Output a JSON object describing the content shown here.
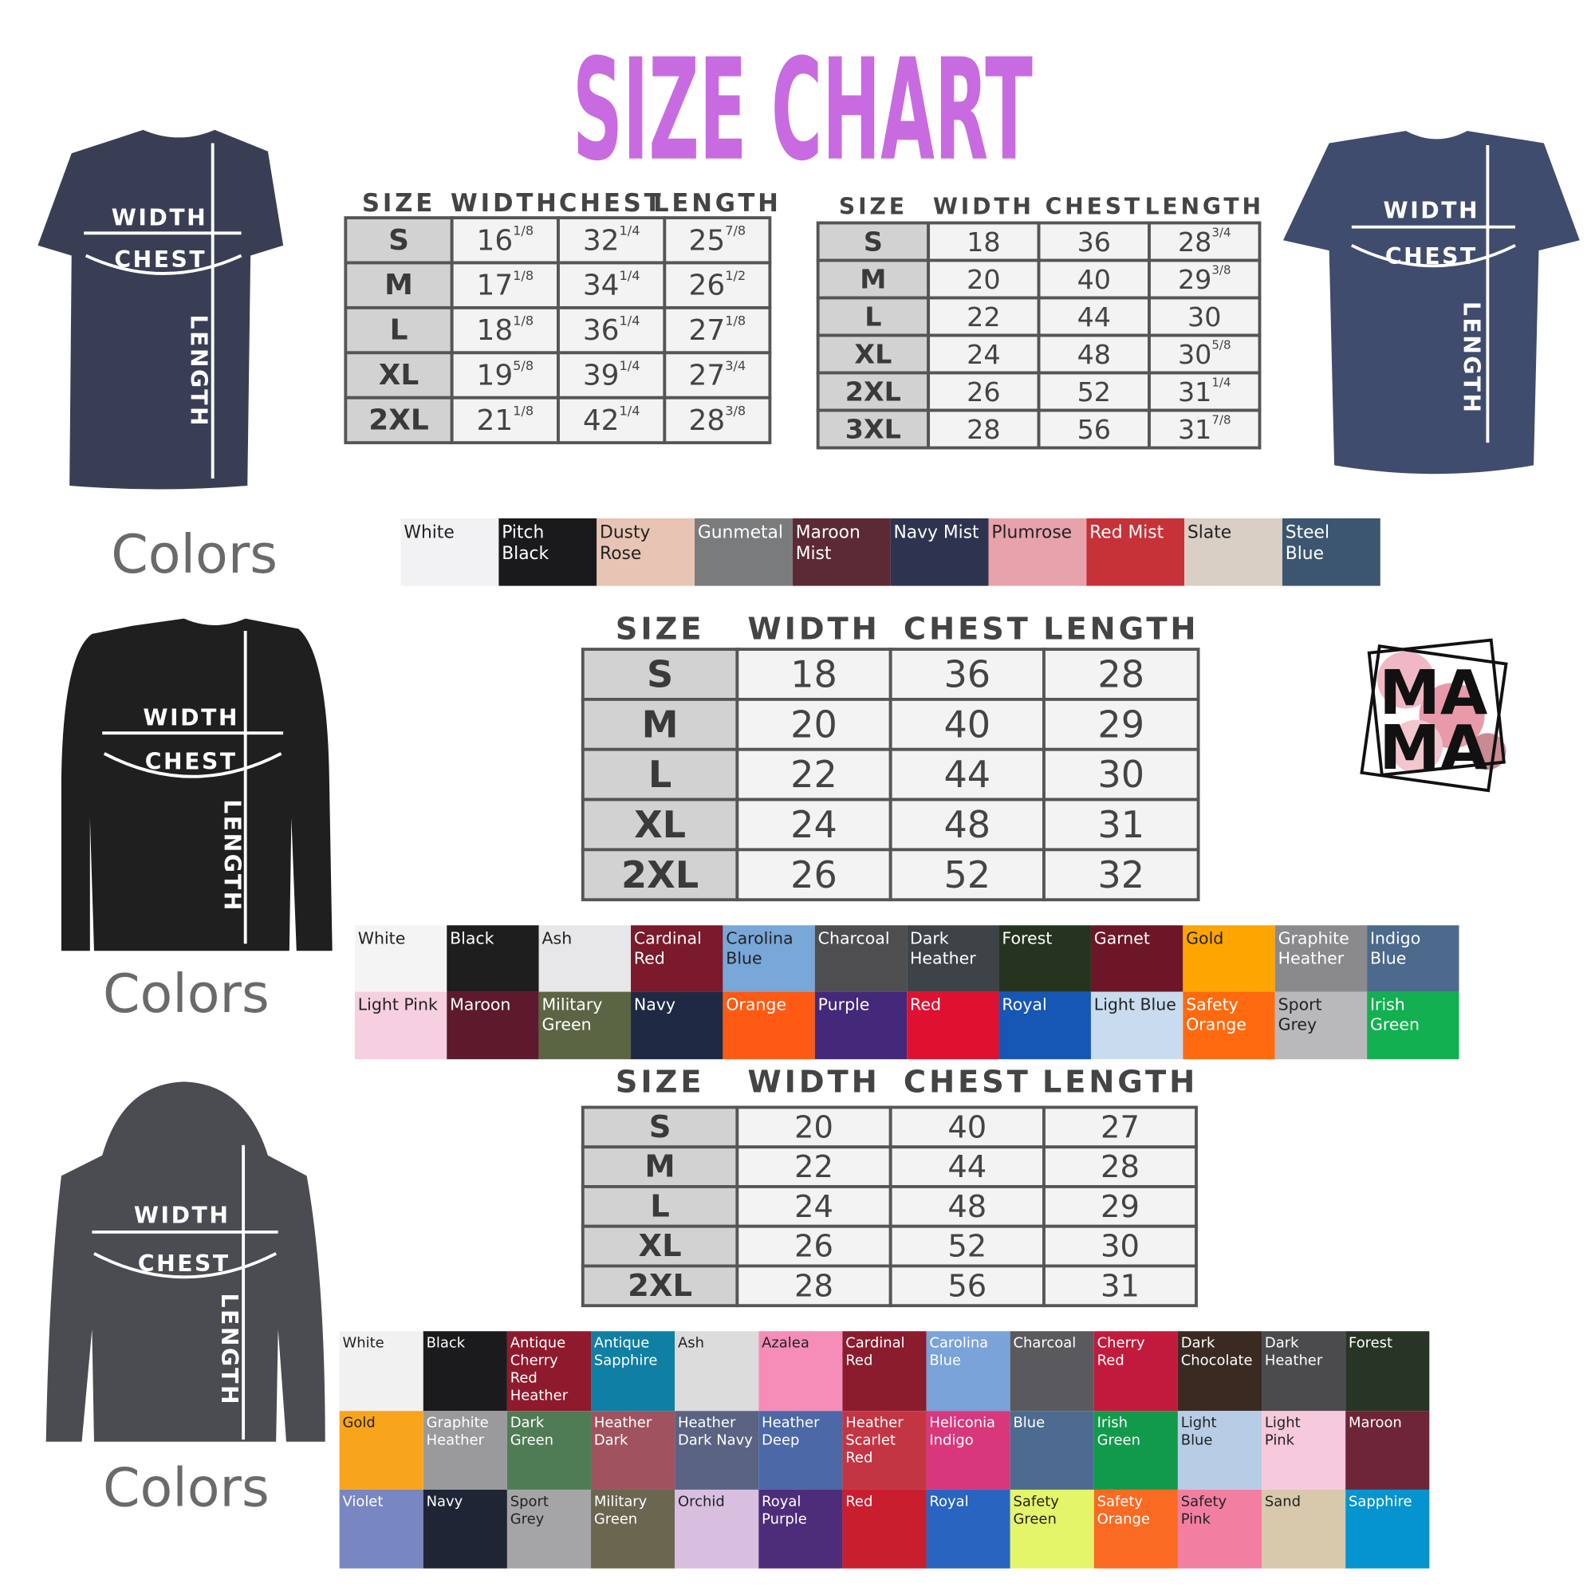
{
  "title": "SIZE CHART",
  "garments": [
    {
      "width": "WIDTH",
      "chest": "CHEST",
      "length": "LENGTH"
    },
    {
      "width": "WIDTH",
      "chest": "CHEST",
      "length": "LENGTH"
    },
    {
      "width": "WIDTH",
      "chest": "CHEST",
      "length": "LENGTH"
    },
    {
      "width": "WIDTH",
      "chest": "CHEST",
      "length": "LENGTH"
    }
  ],
  "colors_labels": [
    "Colors",
    "Colors",
    "Colors"
  ],
  "logo": [
    "MA",
    "MA"
  ],
  "tables": [
    {
      "header": [
        "SIZE",
        "WIDTH",
        "CHEST",
        "LENGTH"
      ],
      "rows": [
        [
          "S",
          [
            "16",
            "1/8"
          ],
          [
            "32",
            "1/4"
          ],
          [
            "25",
            "7/8"
          ]
        ],
        [
          "M",
          [
            "17",
            "1/8"
          ],
          [
            "34",
            "1/4"
          ],
          [
            "26",
            "1/2"
          ]
        ],
        [
          "L",
          [
            "18",
            "1/8"
          ],
          [
            "36",
            "1/4"
          ],
          [
            "27",
            "1/8"
          ]
        ],
        [
          "XL",
          [
            "19",
            "5/8"
          ],
          [
            "39",
            "1/4"
          ],
          [
            "27",
            "3/4"
          ]
        ],
        [
          "2XL",
          [
            "21",
            "1/8"
          ],
          [
            "42",
            "1/4"
          ],
          [
            "28",
            "3/8"
          ]
        ]
      ]
    },
    {
      "header": [
        "SIZE",
        "WIDTH",
        "CHEST",
        "LENGTH"
      ],
      "rows": [
        [
          "S",
          [
            "18"
          ],
          [
            "36"
          ],
          [
            "28",
            "3/4"
          ]
        ],
        [
          "M",
          [
            "20"
          ],
          [
            "40"
          ],
          [
            "29",
            "3/8"
          ]
        ],
        [
          "L",
          [
            "22"
          ],
          [
            "44"
          ],
          [
            "30"
          ]
        ],
        [
          "XL",
          [
            "24"
          ],
          [
            "48"
          ],
          [
            "30",
            "5/8"
          ]
        ],
        [
          "2XL",
          [
            "26"
          ],
          [
            "52"
          ],
          [
            "31",
            "1/4"
          ]
        ],
        [
          "3XL",
          [
            "28"
          ],
          [
            "56"
          ],
          [
            "31",
            "7/8"
          ]
        ]
      ]
    },
    {
      "header": [
        "SIZE",
        "WIDTH",
        "CHEST",
        "LENGTH"
      ],
      "rows": [
        [
          "S",
          [
            "18"
          ],
          [
            "36"
          ],
          [
            "28"
          ]
        ],
        [
          "M",
          [
            "20"
          ],
          [
            "40"
          ],
          [
            "29"
          ]
        ],
        [
          "L",
          [
            "22"
          ],
          [
            "44"
          ],
          [
            "30"
          ]
        ],
        [
          "XL",
          [
            "24"
          ],
          [
            "48"
          ],
          [
            "31"
          ]
        ],
        [
          "2XL",
          [
            "26"
          ],
          [
            "52"
          ],
          [
            "32"
          ]
        ]
      ]
    },
    {
      "header": [
        "SIZE",
        "WIDTH",
        "CHEST",
        "LENGTH"
      ],
      "rows": [
        [
          "S",
          [
            "20"
          ],
          [
            "40"
          ],
          [
            "27"
          ]
        ],
        [
          "M",
          [
            "22"
          ],
          [
            "44"
          ],
          [
            "28"
          ]
        ],
        [
          "L",
          [
            "24"
          ],
          [
            "48"
          ],
          [
            "29"
          ]
        ],
        [
          "XL",
          [
            "26"
          ],
          [
            "52"
          ],
          [
            "30"
          ]
        ],
        [
          "2XL",
          [
            "28"
          ],
          [
            "56"
          ],
          [
            "31"
          ]
        ]
      ]
    }
  ],
  "palettes": [
    [
      {
        "lines": [
          "White"
        ],
        "color": "#f2f2f4"
      },
      {
        "lines": [
          "Pitch",
          "Black"
        ],
        "color": "#1a1a1c"
      },
      {
        "lines": [
          "Dusty",
          "Rose"
        ],
        "color": "#e8c4b4"
      },
      {
        "lines": [
          "Gunmetal"
        ],
        "color": "#7a7b7d"
      },
      {
        "lines": [
          "Maroon",
          "Mist"
        ],
        "color": "#5b2a35"
      },
      {
        "lines": [
          "Navy Mist"
        ],
        "color": "#2e3450"
      },
      {
        "lines": [
          "Plumrose"
        ],
        "color": "#e7a2ab"
      },
      {
        "lines": [
          "Red Mist"
        ],
        "color": "#c73138"
      },
      {
        "lines": [
          "Slate"
        ],
        "color": "#d9cfc4"
      },
      {
        "lines": [
          "Steel",
          "Blue"
        ],
        "color": "#3c5670"
      }
    ],
    [
      {
        "lines": [
          "White"
        ],
        "color": "#f4f4f4"
      },
      {
        "lines": [
          "Black"
        ],
        "color": "#1e1e1e"
      },
      {
        "lines": [
          "Ash"
        ],
        "color": "#e7e7e9"
      },
      {
        "lines": [
          "Cardinal",
          "Red"
        ],
        "color": "#7a1a2b"
      },
      {
        "lines": [
          "Carolina",
          "Blue"
        ],
        "color": "#79a7d8"
      },
      {
        "lines": [
          "Charcoal"
        ],
        "color": "#4e4e50"
      },
      {
        "lines": [
          "Dark",
          "Heather"
        ],
        "color": "#3e4347"
      },
      {
        "lines": [
          "Forest"
        ],
        "color": "#26331f"
      },
      {
        "lines": [
          "Garnet"
        ],
        "color": "#6d1628"
      },
      {
        "lines": [
          "Gold"
        ],
        "color": "#ffa500"
      },
      {
        "lines": [
          "Graphite",
          "Heather"
        ],
        "color": "#8a8a8c"
      },
      {
        "lines": [
          "Indigo",
          "Blue"
        ],
        "color": "#4b6a8c"
      },
      {
        "lines": [
          "Light Pink"
        ],
        "color": "#f6cfe0"
      },
      {
        "lines": [
          "Maroon"
        ],
        "color": "#5c1a2c"
      },
      {
        "lines": [
          "Military",
          "Green"
        ],
        "color": "#5b6544"
      },
      {
        "lines": [
          "Navy"
        ],
        "color": "#1e2a44"
      },
      {
        "lines": [
          "Orange"
        ],
        "color": "#ff5a14"
      },
      {
        "lines": [
          "Purple"
        ],
        "color": "#44287a"
      },
      {
        "lines": [
          "Red"
        ],
        "color": "#e01030"
      },
      {
        "lines": [
          "Royal"
        ],
        "color": "#1656b4"
      },
      {
        "lines": [
          "Light Blue"
        ],
        "color": "#c9dcef"
      },
      {
        "lines": [
          "Safety",
          "Orange"
        ],
        "color": "#ff6a10"
      },
      {
        "lines": [
          "Sport",
          "Grey"
        ],
        "color": "#b9b9bb"
      },
      {
        "lines": [
          "Irish",
          "Green"
        ],
        "color": "#12b050"
      }
    ],
    [
      {
        "lines": [
          "White"
        ],
        "color": "#f1f1f1"
      },
      {
        "lines": [
          "Black"
        ],
        "color": "#1b1b1d"
      },
      {
        "lines": [
          "Antique",
          "Cherry",
          "Red",
          "Heather"
        ],
        "color": "#8f1a2d"
      },
      {
        "lines": [
          "Antique",
          "Sapphire"
        ],
        "color": "#0f7fa3"
      },
      {
        "lines": [
          "Ash"
        ],
        "color": "#dcdcdc"
      },
      {
        "lines": [
          "Azalea"
        ],
        "color": "#f58db8"
      },
      {
        "lines": [
          "Cardinal",
          "Red"
        ],
        "color": "#8a1c2d"
      },
      {
        "lines": [
          "Carolina",
          "Blue"
        ],
        "color": "#7aa3d9"
      },
      {
        "lines": [
          "Charcoal"
        ],
        "color": "#5a5a5e"
      },
      {
        "lines": [
          "Cherry",
          "Red"
        ],
        "color": "#c21a3d"
      },
      {
        "lines": [
          "Dark",
          "Chocolate"
        ],
        "color": "#3b2a22"
      },
      {
        "lines": [
          "Dark",
          "Heather"
        ],
        "color": "#4b4b4e"
      },
      {
        "lines": [
          "Forest"
        ],
        "color": "#283426"
      },
      {
        "lines": [
          "Gold"
        ],
        "color": "#f9a51b"
      },
      {
        "lines": [
          "Graphite",
          "Heather"
        ],
        "color": "#9a9a9c"
      },
      {
        "lines": [
          "Dark",
          "Green"
        ],
        "color": "#4f7c55"
      },
      {
        "lines": [
          "Heather",
          "Dark"
        ],
        "color": "#a0525f"
      },
      {
        "lines": [
          "Heather",
          "Dark Navy"
        ],
        "color": "#5a6382"
      },
      {
        "lines": [
          "Heather",
          "Deep"
        ],
        "color": "#4c68a6"
      },
      {
        "lines": [
          "Heather",
          "Scarlet",
          "Red"
        ],
        "color": "#c43543"
      },
      {
        "lines": [
          "Heliconia",
          "Indigo"
        ],
        "color": "#d8377b"
      },
      {
        "lines": [
          "Blue"
        ],
        "color": "#4d6b90"
      },
      {
        "lines": [
          "Irish",
          "Green"
        ],
        "color": "#129a4c"
      },
      {
        "lines": [
          "Light",
          "Blue"
        ],
        "color": "#b7cde6"
      },
      {
        "lines": [
          "Light",
          "Pink"
        ],
        "color": "#f7c9dd"
      },
      {
        "lines": [
          "Maroon"
        ],
        "color": "#6e2537"
      },
      {
        "lines": [
          "Violet"
        ],
        "color": "#7886c2"
      },
      {
        "lines": [
          "Navy"
        ],
        "color": "#1f2535"
      },
      {
        "lines": [
          "Sport",
          "Grey"
        ],
        "color": "#a5a5a7"
      },
      {
        "lines": [
          "Military",
          "Green"
        ],
        "color": "#6a6650"
      },
      {
        "lines": [
          "Orchid"
        ],
        "color": "#d8bfe0"
      },
      {
        "lines": [
          "Royal",
          "Purple"
        ],
        "color": "#4d2d7a"
      },
      {
        "lines": [
          "Red"
        ],
        "color": "#c81e2e"
      },
      {
        "lines": [
          "Royal"
        ],
        "color": "#2864c0"
      },
      {
        "lines": [
          "Safety",
          "Green"
        ],
        "color": "#e4f56a"
      },
      {
        "lines": [
          "Safety",
          "Orange"
        ],
        "color": "#fb6a22"
      },
      {
        "lines": [
          "Safety",
          "Pink"
        ],
        "color": "#f27fa1"
      },
      {
        "lines": [
          "Sand"
        ],
        "color": "#d8c8ac"
      },
      {
        "lines": [
          "Sapphire"
        ],
        "color": "#0594d0"
      }
    ]
  ]
}
